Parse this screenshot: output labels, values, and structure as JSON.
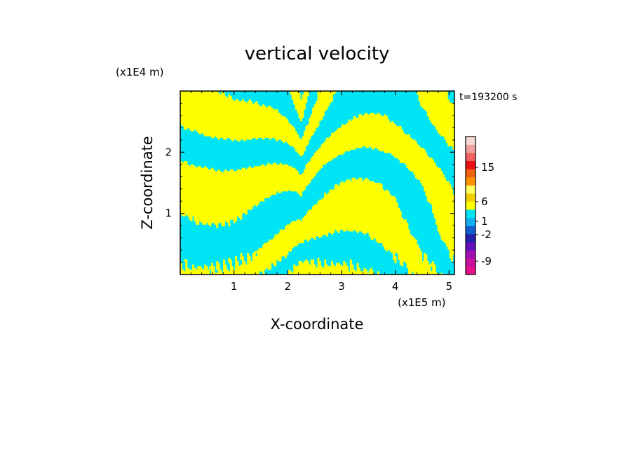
{
  "chart_data": {
    "type": "heatmap",
    "title": "vertical velocity",
    "time_label": "t=193200 s",
    "xlabel": "X-coordinate",
    "ylabel": "Z-coordinate",
    "x_units": "(x1E5 m)",
    "y_units": "(x1E4 m)",
    "x_range": [
      0,
      5.1
    ],
    "y_range": [
      0,
      3.0
    ],
    "x_ticks": [
      1,
      2,
      3,
      4,
      5
    ],
    "y_ticks": [
      1,
      2
    ],
    "x_tick_labels": [
      "1",
      "2",
      "3",
      "4",
      "5"
    ],
    "y_tick_labels": [
      "1",
      "2"
    ],
    "dominant_colors": {
      "positive": "#ffff00",
      "negative": "#00e5f5"
    },
    "colorbar": {
      "levels": [
        {
          "color": "#e8108c"
        },
        {
          "color": "#c8109c"
        },
        {
          "color": "#a010b0"
        },
        {
          "color": "#6010b8"
        },
        {
          "color": "#2020a8"
        },
        {
          "color": "#1060d0"
        },
        {
          "color": "#10b0f0"
        },
        {
          "color": "#00e5f5"
        },
        {
          "color": "#ffff00"
        },
        {
          "color": "#f0d000"
        },
        {
          "color": "#ffff60"
        },
        {
          "color": "#ff9000"
        },
        {
          "color": "#f06010"
        },
        {
          "color": "#e81010"
        },
        {
          "color": "#f06060"
        },
        {
          "color": "#f0a0a0"
        },
        {
          "color": "#f8d8d0"
        }
      ],
      "tick_labels": [
        {
          "label": "15",
          "value": 15
        },
        {
          "label": "6",
          "value": 6
        },
        {
          "label": "1",
          "value": 1
        },
        {
          "label": "-2",
          "value": -2
        },
        {
          "label": "-9",
          "value": -9
        }
      ]
    }
  }
}
